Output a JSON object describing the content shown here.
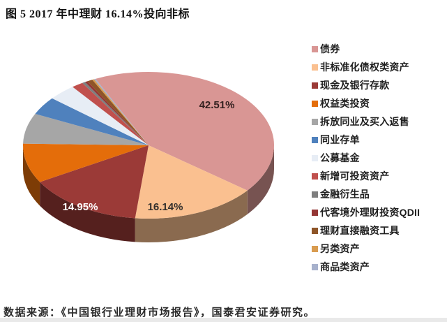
{
  "title": "图 5 2017 年中理财 16.14%投向非标",
  "source_note": "数据来源：《中国银行业理财市场报告》，国泰君安证券研究。",
  "chart_data": {
    "type": "pie",
    "effect": "3d",
    "title": "图 5 2017 年中理财 16.14%投向非标",
    "legend_position": "right",
    "start_angle_deg": -25,
    "slices": [
      {
        "label": "债券",
        "value": 42.51,
        "data_label": "42.51%",
        "labeled": true,
        "color": "#D99694"
      },
      {
        "label": "非标准化债权类资产",
        "value": 16.14,
        "data_label": "16.14%",
        "labeled": true,
        "color": "#FAC090"
      },
      {
        "label": "现金及银行存款",
        "value": 14.95,
        "data_label": "14.95%",
        "labeled": true,
        "color": "#9B3A37"
      },
      {
        "label": "权益类投资",
        "value": 8.7,
        "labeled": false,
        "color": "#E46D0A"
      },
      {
        "label": "拆放同业及买入返售",
        "value": 6.7,
        "labeled": false,
        "color": "#A6A6A6"
      },
      {
        "label": "同业存单",
        "value": 4.0,
        "labeled": false,
        "color": "#4F81BD"
      },
      {
        "label": "公募基金",
        "value": 3.6,
        "labeled": false,
        "color": "#E7EDF5"
      },
      {
        "label": "新增可投资资产",
        "value": 1.5,
        "labeled": false,
        "color": "#C0504D"
      },
      {
        "label": "金融衍生品",
        "value": 0.4,
        "labeled": false,
        "color": "#7F7F7F"
      },
      {
        "label": "代客境外理财投资QDII",
        "value": 0.35,
        "labeled": false,
        "color": "#943634"
      },
      {
        "label": "理财直接融资工具",
        "value": 0.7,
        "labeled": false,
        "color": "#8E5528"
      },
      {
        "label": "另类资产",
        "value": 0.25,
        "labeled": false,
        "color": "#D99C50"
      },
      {
        "label": "商品类资产",
        "value": 0.2,
        "labeled": false,
        "color": "#A7B1CC"
      }
    ],
    "data_labels_shown": [
      "42.51%",
      "16.14%",
      "14.95%"
    ],
    "data_label_colors": {
      "42.51%": "#352120",
      "16.14%": "#33302d",
      "14.95%": "#ffffff"
    }
  }
}
